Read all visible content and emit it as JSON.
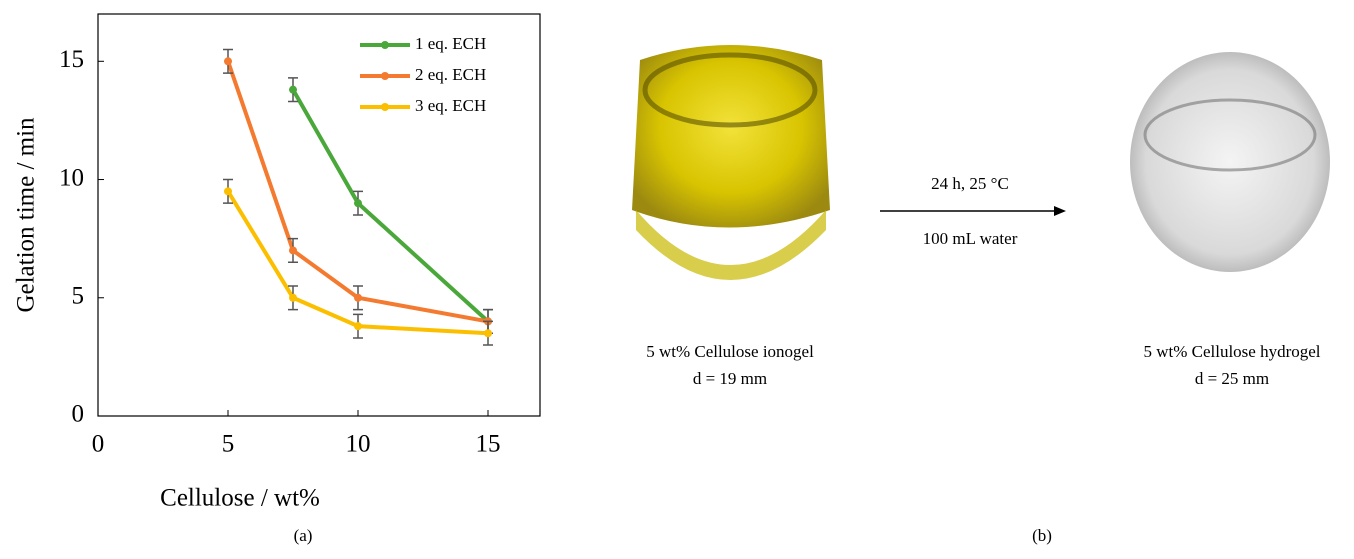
{
  "chart_data": {
    "type": "line",
    "xlabel": "Cellulose / wt%",
    "ylabel": "Gelation time / min",
    "x": [
      5,
      7.5,
      10,
      15
    ],
    "series": [
      {
        "name": "1 eq. ECH",
        "color": "#4aa83a",
        "values": [
          null,
          13.8,
          9,
          4
        ],
        "errors": [
          null,
          0.5,
          0.5,
          0.5
        ]
      },
      {
        "name": "2 eq. ECH",
        "color": "#f47a30",
        "values": [
          15,
          7,
          5,
          4
        ],
        "errors": [
          0.5,
          0.5,
          0.5,
          0.5
        ]
      },
      {
        "name": "3 eq. ECH",
        "color": "#fbbf00",
        "values": [
          9.5,
          5,
          3.8,
          3.5
        ],
        "errors": [
          0.5,
          0.5,
          0.5,
          0.5
        ]
      }
    ],
    "xlim": [
      0,
      17
    ],
    "ylim": [
      0,
      17
    ],
    "xticks": [
      0,
      5,
      10,
      15
    ],
    "yticks": [
      0,
      5,
      10,
      15
    ],
    "legend": "upper right",
    "panel_label": "(a)"
  },
  "panel_b": {
    "arrow_top": "24 h, 25 °C",
    "arrow_bottom": "100 mL water",
    "left_caption": "5 wt% Cellulose ionogel",
    "left_size": "d = 19 mm",
    "right_caption": "5 wt% Cellulose hydrogel",
    "right_size": "d = 25 mm",
    "panel_label": "(b)"
  }
}
